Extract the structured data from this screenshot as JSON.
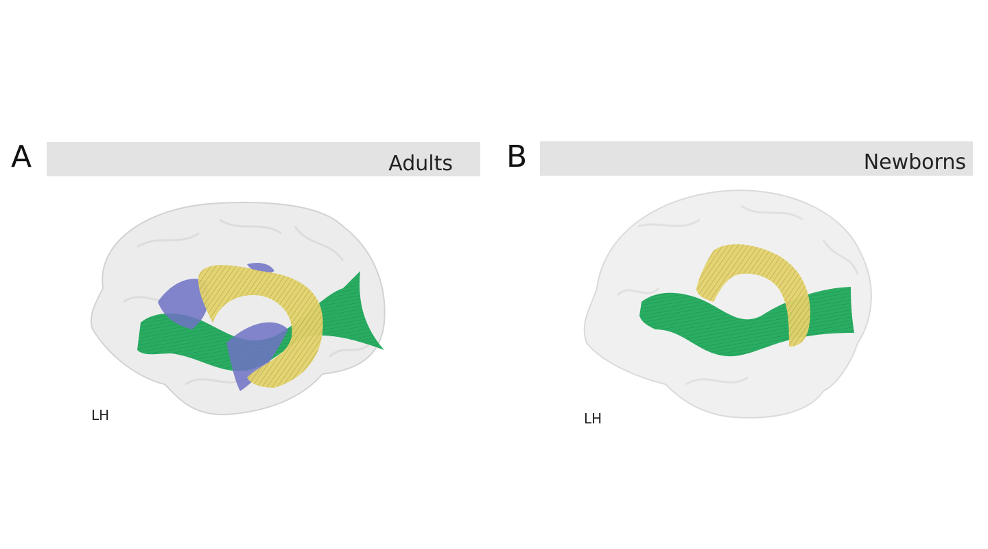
{
  "panels": [
    {
      "letter": "A",
      "title": "Adults",
      "hemisphere": "LH"
    },
    {
      "letter": "B",
      "title": "Newborns",
      "hemisphere": "LH"
    }
  ]
}
